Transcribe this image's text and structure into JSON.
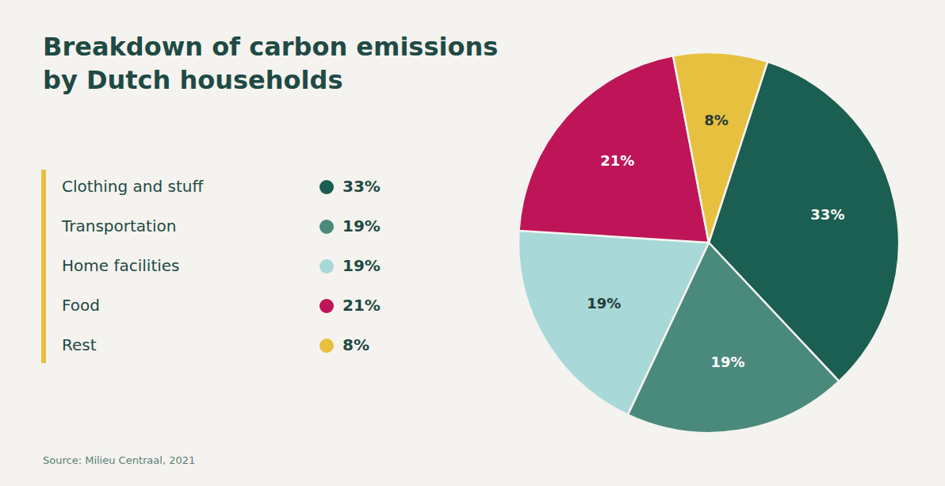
{
  "chart_data": {
    "type": "pie",
    "title": "Breakdown of carbon emissions",
    "subtitle": "by Dutch households",
    "categories": [
      "Clothing and stuff",
      "Transportation",
      "Home facilities",
      "Food",
      "Rest"
    ],
    "values": [
      33,
      19,
      19,
      21,
      8
    ],
    "value_labels": [
      "33%",
      "19%",
      "19%",
      "21%",
      "8%"
    ],
    "colors": [
      "#1b5e52",
      "#4a8a7c",
      "#a8d8d8",
      "#be1558",
      "#e8c040"
    ],
    "data_labels": true,
    "legend": "left",
    "source": "Source: Milieu Centraal, 2021"
  }
}
